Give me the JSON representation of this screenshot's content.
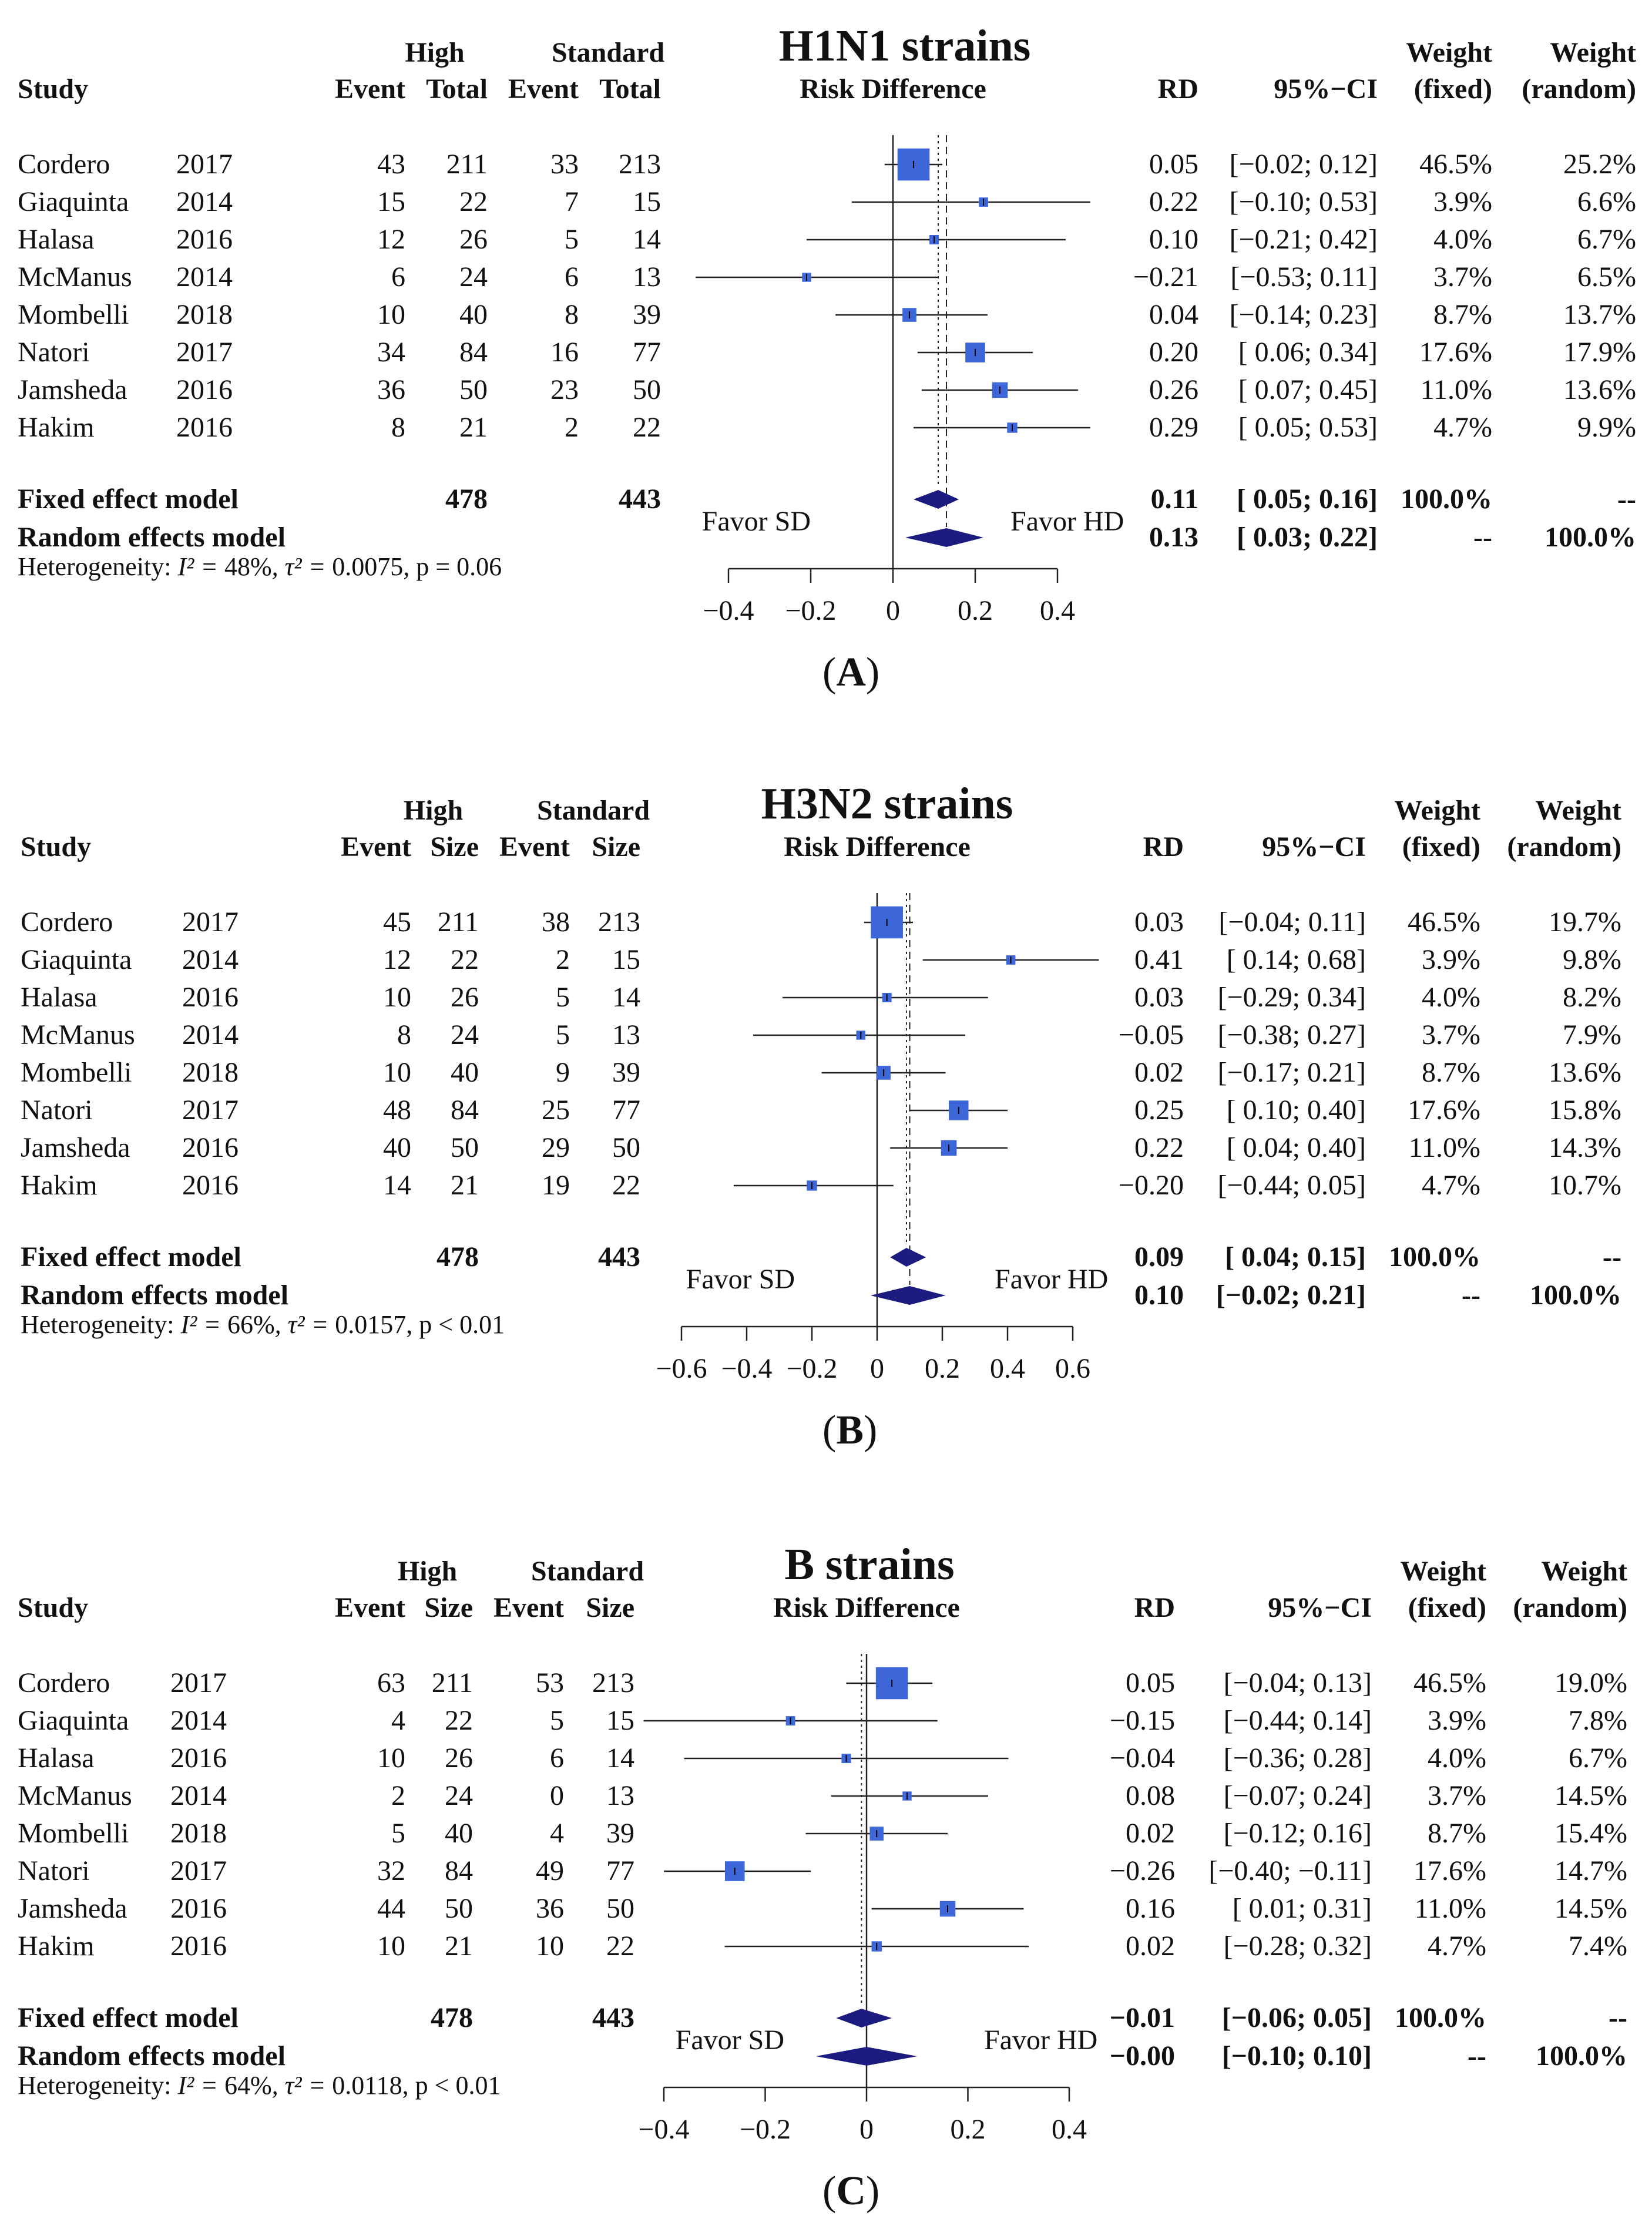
{
  "figure": {
    "labels": {
      "fixed_model": "Fixed effect model",
      "random_model": "Random effects model",
      "favor_left": "Favor SD",
      "favor_right": "Favor HD",
      "axis_title": "Risk Difference",
      "study": "Study",
      "high": "High",
      "standard": "Standard",
      "event": "Event",
      "rd": "RD",
      "ci": "95%−CI",
      "weight": "Weight",
      "fixed": "(fixed)",
      "random": "(random)",
      "heterogeneity": "Heterogeneity:"
    },
    "colors": {
      "square": "#3d66d8",
      "diamond": "#1c1c80",
      "line": "#222222"
    }
  },
  "chart_data": [
    {
      "type": "forest",
      "title": "H1N1 strains",
      "panel_label": "A",
      "count_label": "Total",
      "xlim": [
        -0.4,
        0.4
      ],
      "ticks": [
        -0.4,
        -0.2,
        0,
        0.2,
        0.4
      ],
      "tick_labels": [
        "−0.4",
        "−0.2",
        "0",
        "0.2",
        "0.4"
      ],
      "studies": [
        {
          "name": "Cordero",
          "year": "2017",
          "he": "43",
          "ht": "211",
          "se": "33",
          "st": "213",
          "rd": 0.05,
          "lo": -0.02,
          "hi": 0.12,
          "rd_text": "0.05",
          "ci_text": "[−0.02; 0.12]",
          "wf": "46.5%",
          "wr": "25.2%",
          "wf_num": 46.5
        },
        {
          "name": "Giaquinta",
          "year": "2014",
          "he": "15",
          "ht": "22",
          "se": "7",
          "st": "15",
          "rd": 0.22,
          "lo": -0.1,
          "hi": 0.53,
          "rd_text": "0.22",
          "ci_text": "[−0.10; 0.53]",
          "wf": "3.9%",
          "wr": "6.6%",
          "wf_num": 3.9
        },
        {
          "name": "Halasa",
          "year": "2016",
          "he": "12",
          "ht": "26",
          "se": "5",
          "st": "14",
          "rd": 0.1,
          "lo": -0.21,
          "hi": 0.42,
          "rd_text": "0.10",
          "ci_text": "[−0.21; 0.42]",
          "wf": "4.0%",
          "wr": "6.7%",
          "wf_num": 4.0
        },
        {
          "name": "McManus",
          "year": "2014",
          "he": "6",
          "ht": "24",
          "se": "6",
          "st": "13",
          "rd": -0.21,
          "lo": -0.53,
          "hi": 0.11,
          "rd_text": "−0.21",
          "ci_text": "[−0.53; 0.11]",
          "wf": "3.7%",
          "wr": "6.5%",
          "wf_num": 3.7
        },
        {
          "name": "Mombelli",
          "year": "2018",
          "he": "10",
          "ht": "40",
          "se": "8",
          "st": "39",
          "rd": 0.04,
          "lo": -0.14,
          "hi": 0.23,
          "rd_text": "0.04",
          "ci_text": "[−0.14; 0.23]",
          "wf": "8.7%",
          "wr": "13.7%",
          "wf_num": 8.7
        },
        {
          "name": "Natori",
          "year": "2017",
          "he": "34",
          "ht": "84",
          "se": "16",
          "st": "77",
          "rd": 0.2,
          "lo": 0.06,
          "hi": 0.34,
          "rd_text": "0.20",
          "ci_text": "[ 0.06; 0.34]",
          "wf": "17.6%",
          "wr": "17.9%",
          "wf_num": 17.6
        },
        {
          "name": "Jamsheda",
          "year": "2016",
          "he": "36",
          "ht": "50",
          "se": "23",
          "st": "50",
          "rd": 0.26,
          "lo": 0.07,
          "hi": 0.45,
          "rd_text": "0.26",
          "ci_text": "[ 0.07; 0.45]",
          "wf": "11.0%",
          "wr": "13.6%",
          "wf_num": 11.0
        },
        {
          "name": "Hakim",
          "year": "2016",
          "he": "8",
          "ht": "21",
          "se": "2",
          "st": "22",
          "rd": 0.29,
          "lo": 0.05,
          "hi": 0.53,
          "rd_text": "0.29",
          "ci_text": "[ 0.05; 0.53]",
          "wf": "4.7%",
          "wr": "9.9%",
          "wf_num": 4.7
        }
      ],
      "fixed": {
        "ht": "478",
        "st": "443",
        "rd": 0.11,
        "lo": 0.05,
        "hi": 0.16,
        "rd_text": "0.11",
        "ci_text": "[ 0.05; 0.16]",
        "wf": "100.0%",
        "wr": "--"
      },
      "random": {
        "rd": 0.13,
        "lo": 0.03,
        "hi": 0.22,
        "rd_text": "0.13",
        "ci_text": "[ 0.03; 0.22]",
        "wf": "--",
        "wr": "100.0%"
      },
      "heterogeneity": {
        "i2": "48%",
        "tau2": "0.0075",
        "p": "p = 0.06"
      }
    },
    {
      "type": "forest",
      "title": "H3N2 strains",
      "panel_label": "B",
      "count_label": "Size",
      "xlim": [
        -0.6,
        0.6
      ],
      "ticks": [
        -0.6,
        -0.4,
        -0.2,
        0,
        0.2,
        0.4,
        0.6
      ],
      "tick_labels": [
        "−0.6",
        "−0.4",
        "−0.2",
        "0",
        "0.2",
        "0.4",
        "0.6"
      ],
      "studies": [
        {
          "name": "Cordero",
          "year": "2017",
          "he": "45",
          "ht": "211",
          "se": "38",
          "st": "213",
          "rd": 0.03,
          "lo": -0.04,
          "hi": 0.11,
          "rd_text": "0.03",
          "ci_text": "[−0.04; 0.11]",
          "wf": "46.5%",
          "wr": "19.7%",
          "wf_num": 46.5
        },
        {
          "name": "Giaquinta",
          "year": "2014",
          "he": "12",
          "ht": "22",
          "se": "2",
          "st": "15",
          "rd": 0.41,
          "lo": 0.14,
          "hi": 0.68,
          "rd_text": "0.41",
          "ci_text": "[ 0.14; 0.68]",
          "wf": "3.9%",
          "wr": "9.8%",
          "wf_num": 3.9
        },
        {
          "name": "Halasa",
          "year": "2016",
          "he": "10",
          "ht": "26",
          "se": "5",
          "st": "14",
          "rd": 0.03,
          "lo": -0.29,
          "hi": 0.34,
          "rd_text": "0.03",
          "ci_text": "[−0.29; 0.34]",
          "wf": "4.0%",
          "wr": "8.2%",
          "wf_num": 4.0
        },
        {
          "name": "McManus",
          "year": "2014",
          "he": "8",
          "ht": "24",
          "se": "5",
          "st": "13",
          "rd": -0.05,
          "lo": -0.38,
          "hi": 0.27,
          "rd_text": "−0.05",
          "ci_text": "[−0.38; 0.27]",
          "wf": "3.7%",
          "wr": "7.9%",
          "wf_num": 3.7
        },
        {
          "name": "Mombelli",
          "year": "2018",
          "he": "10",
          "ht": "40",
          "se": "9",
          "st": "39",
          "rd": 0.02,
          "lo": -0.17,
          "hi": 0.21,
          "rd_text": "0.02",
          "ci_text": "[−0.17; 0.21]",
          "wf": "8.7%",
          "wr": "13.6%",
          "wf_num": 8.7
        },
        {
          "name": "Natori",
          "year": "2017",
          "he": "48",
          "ht": "84",
          "se": "25",
          "st": "77",
          "rd": 0.25,
          "lo": 0.1,
          "hi": 0.4,
          "rd_text": "0.25",
          "ci_text": "[ 0.10; 0.40]",
          "wf": "17.6%",
          "wr": "15.8%",
          "wf_num": 17.6
        },
        {
          "name": "Jamsheda",
          "year": "2016",
          "he": "40",
          "ht": "50",
          "se": "29",
          "st": "50",
          "rd": 0.22,
          "lo": 0.04,
          "hi": 0.4,
          "rd_text": "0.22",
          "ci_text": "[ 0.04; 0.40]",
          "wf": "11.0%",
          "wr": "14.3%",
          "wf_num": 11.0
        },
        {
          "name": "Hakim",
          "year": "2016",
          "he": "14",
          "ht": "21",
          "se": "19",
          "st": "22",
          "rd": -0.2,
          "lo": -0.44,
          "hi": 0.05,
          "rd_text": "−0.20",
          "ci_text": "[−0.44; 0.05]",
          "wf": "4.7%",
          "wr": "10.7%",
          "wf_num": 4.7
        }
      ],
      "fixed": {
        "ht": "478",
        "st": "443",
        "rd": 0.09,
        "lo": 0.04,
        "hi": 0.15,
        "rd_text": "0.09",
        "ci_text": "[ 0.04; 0.15]",
        "wf": "100.0%",
        "wr": "--"
      },
      "random": {
        "rd": 0.1,
        "lo": -0.02,
        "hi": 0.21,
        "rd_text": "0.10",
        "ci_text": "[−0.02; 0.21]",
        "wf": "--",
        "wr": "100.0%"
      },
      "heterogeneity": {
        "i2": "66%",
        "tau2": "0.0157",
        "p": "p < 0.01"
      }
    },
    {
      "type": "forest",
      "title": "B strains",
      "panel_label": "C",
      "count_label": "Size",
      "xlim": [
        -0.4,
        0.4
      ],
      "ticks": [
        -0.4,
        -0.2,
        0,
        0.2,
        0.4
      ],
      "tick_labels": [
        "−0.4",
        "−0.2",
        "0",
        "0.2",
        "0.4"
      ],
      "studies": [
        {
          "name": "Cordero",
          "year": "2017",
          "he": "63",
          "ht": "211",
          "se": "53",
          "st": "213",
          "rd": 0.05,
          "lo": -0.04,
          "hi": 0.13,
          "rd_text": "0.05",
          "ci_text": "[−0.04; 0.13]",
          "wf": "46.5%",
          "wr": "19.0%",
          "wf_num": 46.5
        },
        {
          "name": "Giaquinta",
          "year": "2014",
          "he": "4",
          "ht": "22",
          "se": "5",
          "st": "15",
          "rd": -0.15,
          "lo": -0.44,
          "hi": 0.14,
          "rd_text": "−0.15",
          "ci_text": "[−0.44; 0.14]",
          "wf": "3.9%",
          "wr": "7.8%",
          "wf_num": 3.9
        },
        {
          "name": "Halasa",
          "year": "2016",
          "he": "10",
          "ht": "26",
          "se": "6",
          "st": "14",
          "rd": -0.04,
          "lo": -0.36,
          "hi": 0.28,
          "rd_text": "−0.04",
          "ci_text": "[−0.36; 0.28]",
          "wf": "4.0%",
          "wr": "6.7%",
          "wf_num": 4.0
        },
        {
          "name": "McManus",
          "year": "2014",
          "he": "2",
          "ht": "24",
          "se": "0",
          "st": "13",
          "rd": 0.08,
          "lo": -0.07,
          "hi": 0.24,
          "rd_text": "0.08",
          "ci_text": "[−0.07; 0.24]",
          "wf": "3.7%",
          "wr": "14.5%",
          "wf_num": 3.7
        },
        {
          "name": "Mombelli",
          "year": "2018",
          "he": "5",
          "ht": "40",
          "se": "4",
          "st": "39",
          "rd": 0.02,
          "lo": -0.12,
          "hi": 0.16,
          "rd_text": "0.02",
          "ci_text": "[−0.12; 0.16]",
          "wf": "8.7%",
          "wr": "15.4%",
          "wf_num": 8.7
        },
        {
          "name": "Natori",
          "year": "2017",
          "he": "32",
          "ht": "84",
          "se": "49",
          "st": "77",
          "rd": -0.26,
          "lo": -0.4,
          "hi": -0.11,
          "rd_text": "−0.26",
          "ci_text": "[−0.40; −0.11]",
          "wf": "17.6%",
          "wr": "14.7%",
          "wf_num": 17.6
        },
        {
          "name": "Jamsheda",
          "year": "2016",
          "he": "44",
          "ht": "50",
          "se": "36",
          "st": "50",
          "rd": 0.16,
          "lo": 0.01,
          "hi": 0.31,
          "rd_text": "0.16",
          "ci_text": "[ 0.01; 0.31]",
          "wf": "11.0%",
          "wr": "14.5%",
          "wf_num": 11.0
        },
        {
          "name": "Hakim",
          "year": "2016",
          "he": "10",
          "ht": "21",
          "se": "10",
          "st": "22",
          "rd": 0.02,
          "lo": -0.28,
          "hi": 0.32,
          "rd_text": "0.02",
          "ci_text": "[−0.28; 0.32]",
          "wf": "4.7%",
          "wr": "7.4%",
          "wf_num": 4.7
        }
      ],
      "fixed": {
        "ht": "478",
        "st": "443",
        "rd": -0.01,
        "lo": -0.06,
        "hi": 0.05,
        "rd_text": "−0.01",
        "ci_text": "[−0.06; 0.05]",
        "wf": "100.0%",
        "wr": "--"
      },
      "random": {
        "rd": -0.0,
        "lo": -0.1,
        "hi": 0.1,
        "rd_text": "−0.00",
        "ci_text": "[−0.10; 0.10]",
        "wf": "--",
        "wr": "100.0%"
      },
      "heterogeneity": {
        "i2": "64%",
        "tau2": "0.0118",
        "p": "p < 0.01"
      }
    }
  ]
}
